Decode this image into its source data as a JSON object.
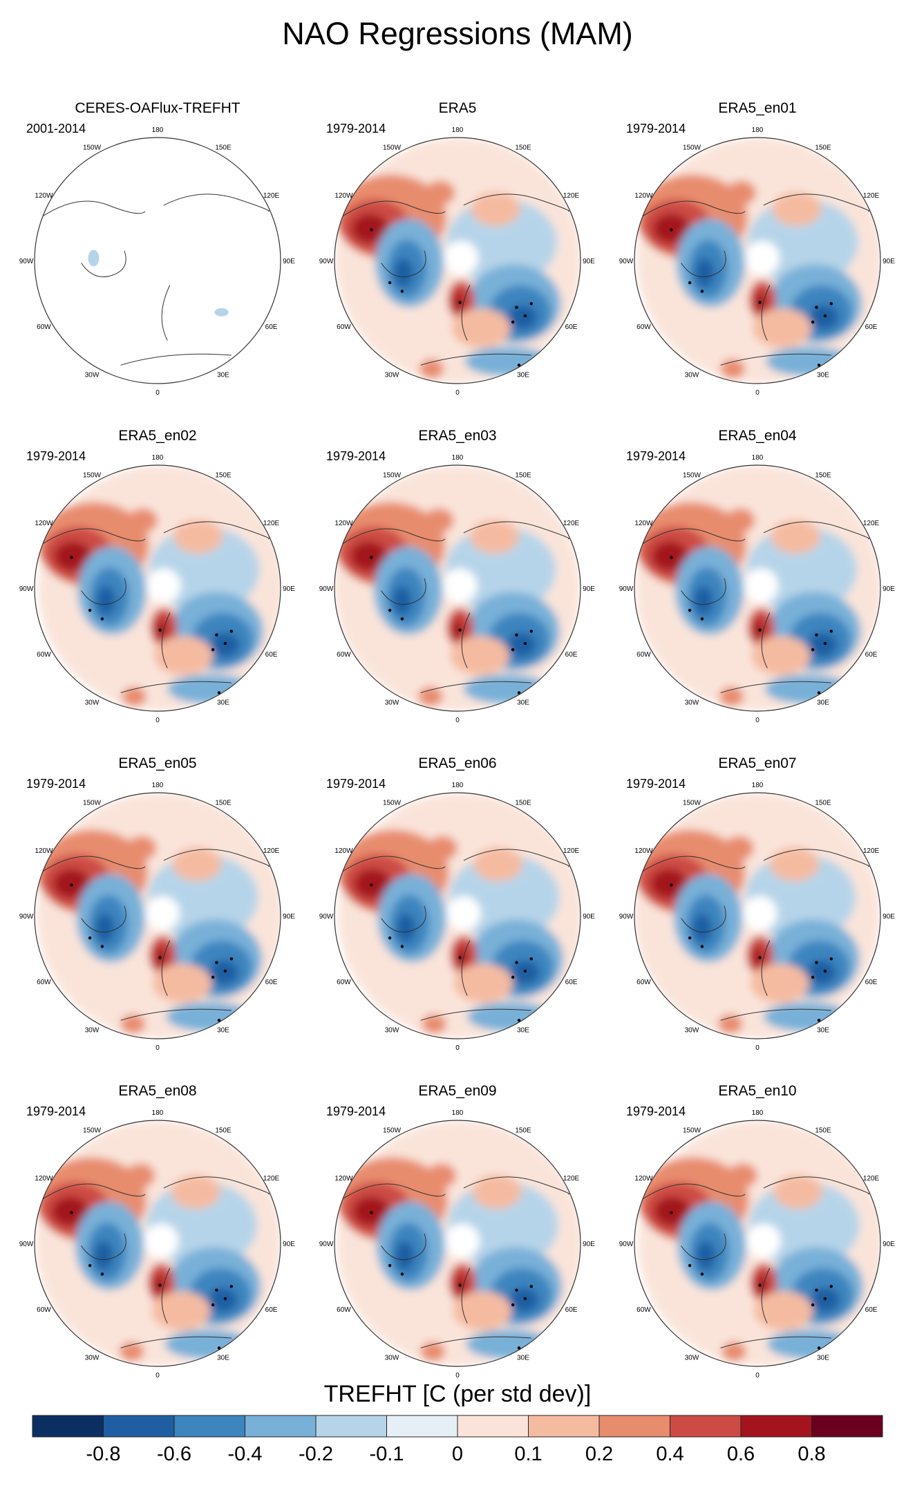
{
  "figure_title": "NAO Regressions (MAM)",
  "colorbar": {
    "title": "TREFHT [C (per std dev)]",
    "tick_labels": [
      "-0.8",
      "-0.6",
      "-0.4",
      "-0.2",
      "-0.1",
      "0",
      "0.1",
      "0.2",
      "0.4",
      "0.6",
      "0.8"
    ],
    "colors": [
      "#0b2f63",
      "#1f5ea3",
      "#3c85bf",
      "#78b0d8",
      "#b6d4e9",
      "#e6eff6",
      "#fae4da",
      "#f5bba1",
      "#e88c6e",
      "#cd4b45",
      "#a3141f",
      "#6a0020"
    ]
  },
  "map_labels": {
    "lon_ticks": [
      "180",
      "150E",
      "120E",
      "90E",
      "60E",
      "30E",
      "0",
      "30W",
      "60W",
      "90W",
      "120W",
      "150W"
    ]
  },
  "chart_data": {
    "type": "heatmap",
    "projection": "polar-stereographic (north)",
    "units": "C per std dev",
    "levels": [
      -0.8,
      -0.6,
      -0.4,
      -0.2,
      -0.1,
      0,
      0.1,
      0.2,
      0.4,
      0.6,
      0.8
    ],
    "panels": [
      {
        "title": "CERES-OAFlux-TREFHT",
        "period": "2001-2014",
        "has_data": false,
        "features": [
          {
            "region": "Hudson Bay",
            "value": -0.2
          },
          {
            "region": "Caspian area",
            "value": -0.2
          }
        ]
      },
      {
        "title": "ERA5",
        "period": "1979-2014",
        "has_data": true,
        "features": [
          {
            "region": "NW Canada",
            "value": 0.6,
            "significant": true
          },
          {
            "region": "NE Canada / Greenland",
            "value": -0.6,
            "significant": true
          },
          {
            "region": "Scandinavia",
            "value": 0.8,
            "significant": true
          },
          {
            "region": "Central Eurasia",
            "value": -0.6,
            "significant": true
          },
          {
            "region": "North Africa / Middle East",
            "value": -0.4,
            "significant": true
          },
          {
            "region": "Subtropical N. Atlantic",
            "value": 0.4,
            "significant": false
          },
          {
            "region": "Eastern Siberia",
            "value": -0.2,
            "significant": false
          }
        ]
      },
      {
        "title": "ERA5_en01",
        "period": "1979-2014",
        "has_data": true
      },
      {
        "title": "ERA5_en02",
        "period": "1979-2014",
        "has_data": true
      },
      {
        "title": "ERA5_en03",
        "period": "1979-2014",
        "has_data": true
      },
      {
        "title": "ERA5_en04",
        "period": "1979-2014",
        "has_data": true
      },
      {
        "title": "ERA5_en05",
        "period": "1979-2014",
        "has_data": true
      },
      {
        "title": "ERA5_en06",
        "period": "1979-2014",
        "has_data": true
      },
      {
        "title": "ERA5_en07",
        "period": "1979-2014",
        "has_data": true
      },
      {
        "title": "ERA5_en08",
        "period": "1979-2014",
        "has_data": true
      },
      {
        "title": "ERA5_en09",
        "period": "1979-2014",
        "has_data": true
      },
      {
        "title": "ERA5_en10",
        "period": "1979-2014",
        "has_data": true
      }
    ]
  }
}
